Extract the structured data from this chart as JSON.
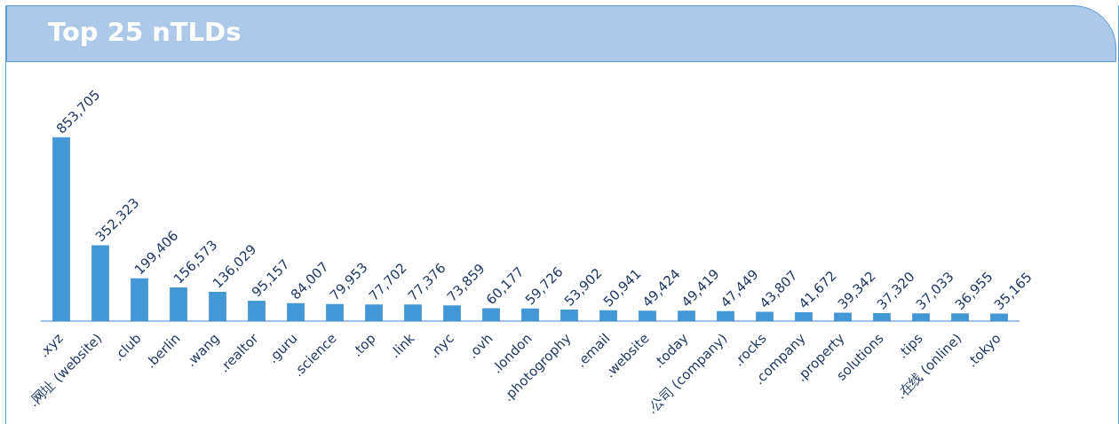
{
  "chart_data": {
    "type": "bar",
    "title": "Top 25 nTLDs",
    "categories": [
      ".xyz",
      ".网址 (website)",
      ".club",
      ".berlin",
      ".wang",
      ".realtor",
      ".guru",
      ".science",
      ".top",
      ".link",
      ".nyc",
      ".ovh",
      ".london",
      ".photogrophy",
      ".email",
      ".website",
      ".today",
      ".公司 (company)",
      ".rocks",
      ".company",
      ".property",
      "solutions",
      ".tips",
      ".在线 (online)",
      ".tokyo"
    ],
    "values": [
      853705,
      352323,
      199406,
      156573,
      136029,
      95157,
      84007,
      79953,
      77702,
      77376,
      73859,
      60177,
      59726,
      53902,
      50941,
      49424,
      49419,
      47449,
      43807,
      41672,
      39342,
      37320,
      37033,
      36955,
      35165
    ],
    "value_labels": [
      "853,705",
      "352,323",
      "199,406",
      "156,573",
      "136,029",
      "95,157",
      "84,007",
      "79,953",
      "77,702",
      "77,376",
      "73,859",
      "60,177",
      "59,726",
      "53,902",
      "50,941",
      "49,424",
      "49,419",
      "47,449",
      "43,807",
      "41,672",
      "39,342",
      "37,320",
      "37,033",
      "36,955",
      "35,165"
    ],
    "color": "#4397d4",
    "tick_labels": "x"
  }
}
